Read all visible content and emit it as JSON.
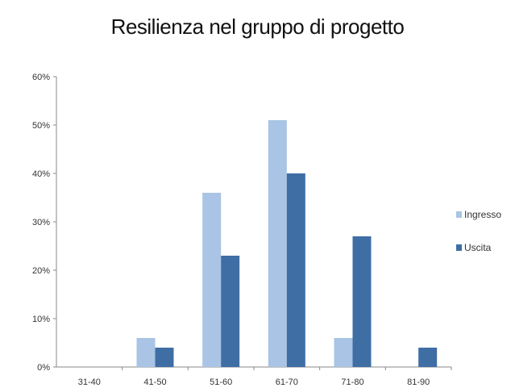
{
  "chart_data": {
    "type": "bar",
    "title": "Resilienza nel gruppo di progetto",
    "xlabel": "",
    "ylabel": "",
    "categories": [
      "31-40",
      "41-50",
      "51-60",
      "61-70",
      "71-80",
      "81-90"
    ],
    "series": [
      {
        "name": "Ingresso",
        "values": [
          0,
          6,
          36,
          51,
          6,
          0
        ],
        "color": "#a9c4e4"
      },
      {
        "name": "Uscita",
        "values": [
          0,
          4,
          23,
          40,
          27,
          4
        ],
        "color": "#3f6ea5"
      }
    ],
    "ylim": [
      0,
      60
    ],
    "yticks": [
      "0%",
      "10%",
      "20%",
      "30%",
      "40%",
      "50%",
      "60%"
    ],
    "grid": false,
    "legend_position": "right"
  }
}
